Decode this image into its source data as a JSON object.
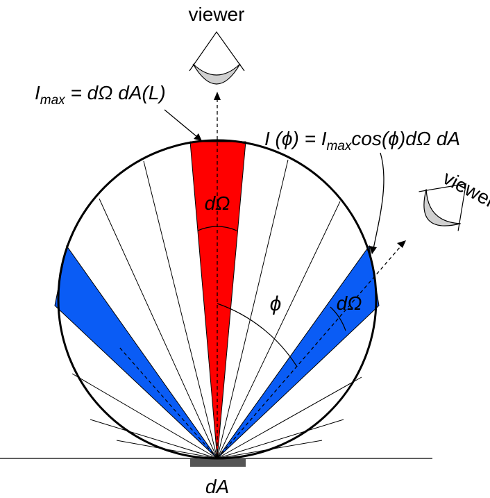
{
  "labels": {
    "viewer_top": "viewer",
    "viewer_right": "viewer",
    "i_max_I": "I",
    "i_max_sub": "max",
    "i_max_rest": " = dΩ dA(L)",
    "i_phi_pre": "I (",
    "i_phi_phi": "ϕ",
    "i_phi_mid": ") = I",
    "i_phi_sub": "max",
    "i_phi_cos": "cos(",
    "i_phi_phi2": "ϕ",
    "i_phi_end": ")dΩ dA",
    "domega_red": "dΩ",
    "domega_blue": "dΩ",
    "phi_angle": "ϕ",
    "dA": "dA"
  },
  "colors": {
    "red_wedge": "#ff0000",
    "blue_wedge": "#0a5cf5",
    "eye": "#d0d0d0",
    "patch": "#555555"
  },
  "icons": [
    "viewer-eye-icon"
  ]
}
